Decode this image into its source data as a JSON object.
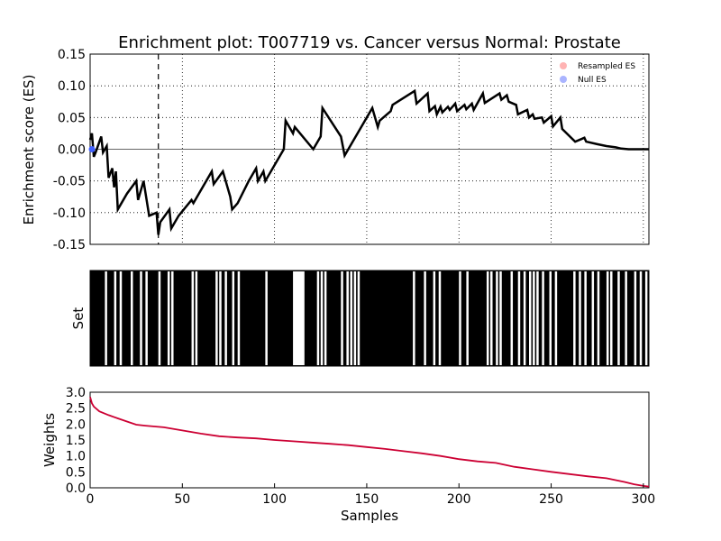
{
  "title": "Enrichment plot: T007719 vs. Cancer versus Normal: Prostate",
  "chart_data": [
    {
      "panel": "es",
      "type": "line",
      "ylabel": "Enrichment score (ES)",
      "xlim": [
        0,
        303
      ],
      "ylim": [
        -0.15,
        0.15
      ],
      "yticks": [
        "0.15",
        "0.10",
        "0.05",
        "0.00",
        "-0.05",
        "-0.10",
        "-0.15"
      ],
      "grid": true,
      "legend_position": "top-right",
      "legend": [
        {
          "label": "Resampled ES",
          "color": "#ffb3b3"
        },
        {
          "label": "Null ES",
          "color": "#aab4ff"
        }
      ],
      "max_deviation_x": 37,
      "series": [
        {
          "color": "#000000",
          "x": [
            0,
            1,
            2,
            3,
            6,
            7,
            9,
            10,
            12,
            13,
            14,
            15,
            20,
            25,
            26,
            28,
            29,
            32,
            36,
            37,
            38,
            43,
            44,
            48,
            55,
            56,
            59,
            66,
            67,
            72,
            73,
            76,
            77,
            80,
            86,
            90,
            91,
            94,
            95,
            105,
            106,
            110,
            111,
            121,
            122,
            125,
            126,
            136,
            138,
            141,
            153,
            156,
            157,
            163,
            164,
            176,
            177,
            183,
            184,
            187,
            188,
            190,
            191,
            194,
            195,
            198,
            199,
            203,
            204,
            207,
            208,
            213,
            214,
            222,
            223,
            226,
            227,
            231,
            232,
            237,
            238,
            240,
            241,
            245,
            246,
            250,
            251,
            255,
            256,
            263,
            268,
            269,
            275,
            280,
            285,
            288,
            292,
            296,
            303
          ],
          "y": [
            0.015,
            0.025,
            -0.012,
            -0.005,
            0.02,
            -0.005,
            0.005,
            -0.045,
            -0.03,
            -0.06,
            -0.035,
            -0.095,
            -0.07,
            -0.05,
            -0.08,
            -0.06,
            -0.05,
            -0.105,
            -0.1,
            -0.135,
            -0.115,
            -0.095,
            -0.125,
            -0.105,
            -0.08,
            -0.085,
            -0.07,
            -0.035,
            -0.055,
            -0.035,
            -0.045,
            -0.075,
            -0.095,
            -0.085,
            -0.05,
            -0.03,
            -0.05,
            -0.035,
            -0.05,
            0.0,
            0.045,
            0.025,
            0.035,
            0.0,
            0.005,
            0.02,
            0.065,
            0.02,
            -0.01,
            0.005,
            0.065,
            0.035,
            0.045,
            0.06,
            0.07,
            0.092,
            0.072,
            0.088,
            0.06,
            0.068,
            0.055,
            0.067,
            0.058,
            0.067,
            0.062,
            0.072,
            0.06,
            0.07,
            0.063,
            0.072,
            0.062,
            0.088,
            0.073,
            0.088,
            0.078,
            0.085,
            0.075,
            0.07,
            0.055,
            0.062,
            0.05,
            0.055,
            0.048,
            0.05,
            0.042,
            0.052,
            0.036,
            0.05,
            0.032,
            0.012,
            0.018,
            0.012,
            0.008,
            0.005,
            0.003,
            0.001,
            0.0,
            0.0,
            0.0
          ]
        }
      ]
    },
    {
      "panel": "set",
      "type": "bar",
      "ylabel": "Set",
      "xlim": [
        0,
        303
      ],
      "white_gaps_x": [
        8,
        13,
        16,
        22,
        27,
        30,
        37,
        42,
        44,
        55,
        57,
        68,
        70,
        73,
        77,
        80,
        95,
        110,
        111,
        112,
        113,
        114,
        115,
        123,
        125,
        127,
        136,
        139,
        141,
        143,
        145,
        175,
        181,
        186,
        189,
        200,
        204,
        215,
        217,
        220,
        222,
        228,
        232,
        235,
        238,
        240,
        242,
        245,
        249,
        252,
        262,
        265,
        268,
        272,
        275,
        280,
        282,
        286,
        290,
        295,
        298,
        301
      ]
    },
    {
      "panel": "weights",
      "type": "line",
      "xlabel": "Samples",
      "ylabel": "Weights",
      "xlim": [
        0,
        303
      ],
      "ylim": [
        0,
        3
      ],
      "xticks": [
        "0",
        "50",
        "100",
        "150",
        "200",
        "250",
        "300"
      ],
      "yticks": [
        "3.0",
        "2.5",
        "2.0",
        "1.5",
        "1.0",
        "0.5",
        "0.0"
      ],
      "series": [
        {
          "color": "#cc0033",
          "x": [
            0,
            1,
            2,
            5,
            10,
            15,
            20,
            25,
            30,
            40,
            50,
            60,
            70,
            80,
            90,
            100,
            110,
            120,
            130,
            140,
            150,
            160,
            170,
            180,
            190,
            200,
            210,
            220,
            230,
            240,
            250,
            260,
            270,
            280,
            290,
            295,
            300,
            303
          ],
          "y": [
            2.85,
            2.65,
            2.55,
            2.4,
            2.28,
            2.18,
            2.08,
            1.98,
            1.95,
            1.9,
            1.8,
            1.7,
            1.62,
            1.58,
            1.55,
            1.5,
            1.46,
            1.42,
            1.38,
            1.34,
            1.28,
            1.22,
            1.15,
            1.08,
            1.0,
            0.9,
            0.83,
            0.78,
            0.66,
            0.58,
            0.5,
            0.43,
            0.36,
            0.3,
            0.18,
            0.11,
            0.06,
            0.04
          ]
        }
      ]
    }
  ]
}
